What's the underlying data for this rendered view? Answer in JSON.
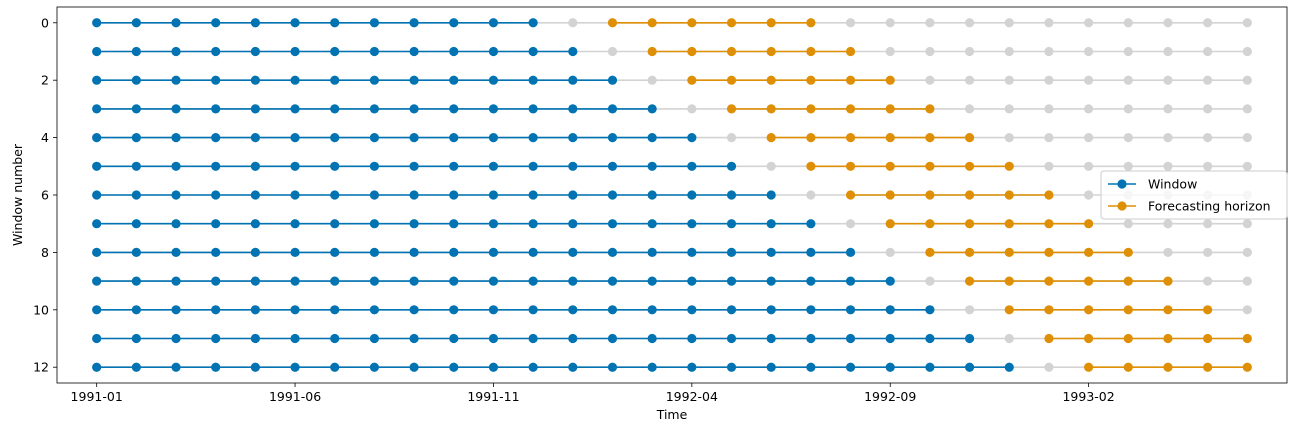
{
  "chart_data": {
    "type": "line",
    "xlabel": "Time",
    "ylabel": "Window number",
    "x_range": [
      "1990-12",
      "1993-07"
    ],
    "y_range": [
      12.55,
      -0.55
    ],
    "y_inverted": true,
    "x_ticks": [
      "1991-01",
      "1991-06",
      "1991-11",
      "1992-04",
      "1992-09",
      "1993-02"
    ],
    "y_ticks": [
      0,
      2,
      4,
      6,
      8,
      10,
      12
    ],
    "timeline": [
      "1991-01",
      "1991-02",
      "1991-03",
      "1991-04",
      "1991-05",
      "1991-06",
      "1991-07",
      "1991-08",
      "1991-09",
      "1991-10",
      "1991-11",
      "1991-12",
      "1992-01",
      "1992-02",
      "1992-03",
      "1992-04",
      "1992-05",
      "1992-06",
      "1992-07",
      "1992-08",
      "1992-09",
      "1992-10",
      "1992-11",
      "1992-12",
      "1993-01",
      "1993-02",
      "1993-03",
      "1993-04",
      "1993-05",
      "1993-06"
    ],
    "window_length": 12,
    "window_step": 1,
    "forecasting_horizon": [
      2,
      3,
      4,
      5,
      6,
      7
    ],
    "number_of_windows": 13,
    "background_color": "#d3d3d3",
    "series": [
      {
        "name": "Window",
        "color": "#0173b2"
      },
      {
        "name": "Forecasting horizon",
        "color": "#de8f05"
      }
    ],
    "legend": {
      "position": "center-right",
      "entries": [
        "Window",
        "Forecasting horizon"
      ]
    },
    "grid": false
  }
}
